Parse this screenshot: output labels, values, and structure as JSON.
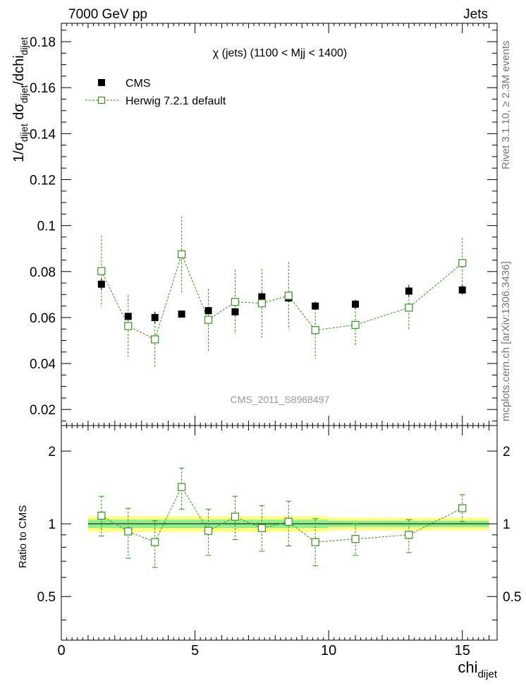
{
  "header": {
    "left": "7000 GeV pp",
    "right": "Jets"
  },
  "side_labels": {
    "rivet": "Rivet 3.1.10, ≥ 2.3M events",
    "mcplots": "mcplots.cern.ch [arXiv:1306.3436]"
  },
  "watermark": "CMS_2011_S8968497",
  "colors": {
    "data": "#000000",
    "mc": "#3a8f1f",
    "band_inner": "#90ee90",
    "band_outer": "#ffff80",
    "ref_line": "#000000"
  },
  "chart_data": [
    {
      "type": "scatter",
      "title": "χ (jets) (1100 < Mjj < 1400)",
      "ylabel": "1/σdijet dσdijet/dchidijet",
      "xlim": [
        0,
        16.3
      ],
      "ylim": [
        0.013,
        0.188
      ],
      "yticks": [
        0.02,
        0.04,
        0.06,
        0.08,
        0.1,
        0.12,
        0.14,
        0.16,
        0.18
      ],
      "yticklabels": [
        "0.02",
        "0.04",
        "0.06",
        "0.08",
        "0.1",
        "0.12",
        "0.14",
        "0.16",
        "0.18"
      ],
      "legend_position": "top-left",
      "series": [
        {
          "name": "CMS",
          "x": [
            1.5,
            2.5,
            3.5,
            4.5,
            5.5,
            6.5,
            7.5,
            8.5,
            9.5,
            11,
            13,
            15
          ],
          "y": [
            0.0745,
            0.0605,
            0.06,
            0.0615,
            0.063,
            0.0625,
            0.069,
            0.0685,
            0.065,
            0.0658,
            0.0715,
            0.072
          ],
          "yerr": [
            0.0025,
            0.0015,
            0.0025,
            0.0015,
            0.0015,
            0.0015,
            0.002,
            0.0015,
            0.0015,
            0.002,
            0.0025,
            0.002
          ]
        },
        {
          "name": "Herwig 7.2.1 default",
          "x": [
            1.5,
            2.5,
            3.5,
            4.5,
            5.5,
            6.5,
            7.5,
            8.5,
            9.5,
            11,
            13,
            15
          ],
          "y": [
            0.0802,
            0.0563,
            0.0505,
            0.0875,
            0.059,
            0.0668,
            0.0662,
            0.0695,
            0.0545,
            0.0568,
            0.0643,
            0.0837
          ],
          "yerr": [
            0.0155,
            0.0135,
            0.012,
            0.0165,
            0.0135,
            0.014,
            0.015,
            0.0147,
            0.0125,
            0.009,
            0.01,
            0.011
          ]
        }
      ]
    },
    {
      "type": "scatter",
      "title": "",
      "ylabel": "Ratio to CMS",
      "xlabel": "chidijet",
      "xlim": [
        0,
        16.3
      ],
      "xticks": [
        0,
        5,
        10,
        15
      ],
      "xticklabels": [
        "0",
        "5",
        "10",
        "15"
      ],
      "ylim": [
        0.33,
        2.55
      ],
      "yticks": [
        0.5,
        1,
        2
      ],
      "yticklabels": [
        "0.5",
        "1",
        "2"
      ],
      "bands": [
        {
          "xlo": 1,
          "xhi": 10,
          "inner": 0.04,
          "outer": 0.075
        },
        {
          "xlo": 10,
          "xhi": 16,
          "inner": 0.03,
          "outer": 0.06
        }
      ],
      "series": [
        {
          "name": "Herwig 7.2.1 default",
          "x": [
            1.5,
            2.5,
            3.5,
            4.5,
            5.5,
            6.5,
            7.5,
            8.5,
            9.5,
            11,
            13,
            15
          ],
          "y": [
            1.08,
            0.93,
            0.84,
            1.42,
            0.935,
            1.07,
            0.96,
            1.02,
            0.84,
            0.865,
            0.9,
            1.16
          ],
          "ylo": [
            0.89,
            0.72,
            0.66,
            1.15,
            0.74,
            0.86,
            0.77,
            0.81,
            0.67,
            0.74,
            0.76,
            1.02
          ],
          "yhi": [
            1.3,
            1.16,
            1.03,
            1.7,
            1.15,
            1.3,
            1.19,
            1.24,
            1.05,
            1.0,
            1.04,
            1.32
          ]
        }
      ]
    }
  ]
}
